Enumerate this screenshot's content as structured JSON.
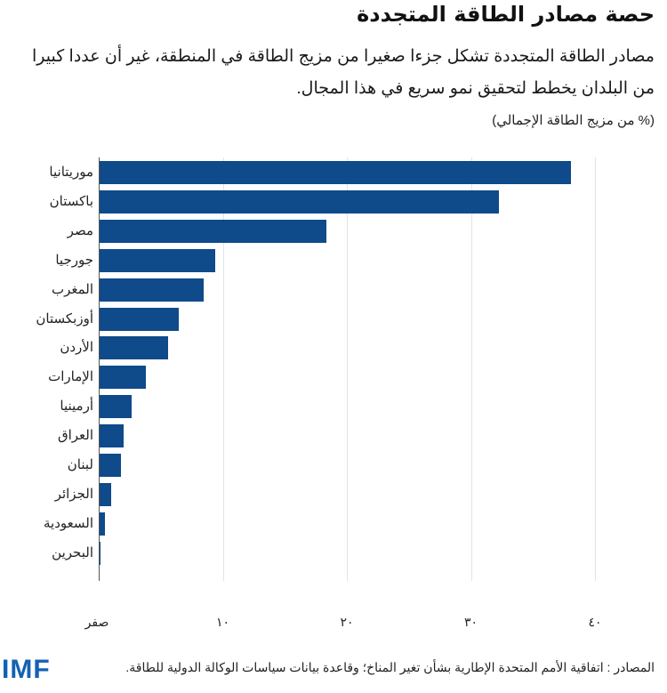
{
  "header": {
    "title": "حصة مصادر الطاقة المتجددة",
    "subtitle": "مصادر الطاقة المتجددة تشكل جزءا صغيرا من مزيج الطاقة في المنطقة، غير أن عددا كبيرا من البلدان يخطط لتحقيق نمو سريع في هذا المجال.",
    "unit": "(% من مزيج الطاقة الإجمالي)"
  },
  "footer": {
    "source": "المصادر : اتفاقية الأمم المتحدة الإطارية بشأن تغير المناخ؛ وقاعدة بيانات سياسات الوكالة الدولية للطاقة.",
    "logo": "IMF"
  },
  "colors": {
    "bar": "#0f4a8a",
    "logo": "#1461b4",
    "grid": "#e3e3e3"
  },
  "chart_data": {
    "type": "bar",
    "orientation": "horizontal",
    "title": "حصة مصادر الطاقة المتجددة",
    "subtitle": "مصادر الطاقة المتجددة تشكل جزءا صغيرا من مزيج الطاقة في المنطقة، غير أن عددا كبيرا من البلدان يخطط لتحقيق نمو سريع في هذا المجال.",
    "ylabel": "(% من مزيج الطاقة الإجمالي)",
    "xlabel": "",
    "categories": [
      "موريتانيا",
      "باكستان",
      "مصر",
      "جورجيا",
      "المغرب",
      "أوزبكستان",
      "الأردن",
      "الإمارات",
      "أرمينيا",
      "العراق",
      "لبنان",
      "الجزائر",
      "السعودية",
      "البحرين"
    ],
    "values": [
      38.0,
      32.2,
      18.3,
      9.3,
      8.4,
      6.4,
      5.5,
      3.7,
      2.6,
      1.9,
      1.7,
      0.9,
      0.4,
      0.1
    ],
    "xlim": [
      0,
      40
    ],
    "ticks": [
      0,
      10,
      20,
      30,
      40
    ],
    "tick_labels": [
      "صفر",
      "١٠",
      "٢٠",
      "٣٠",
      "٤٠"
    ],
    "grid": true,
    "legend": null,
    "source": "المصادر : اتفاقية الأمم المتحدة الإطارية بشأن تغير المناخ؛ وقاعدة بيانات سياسات الوكالة الدولية للطاقة."
  }
}
